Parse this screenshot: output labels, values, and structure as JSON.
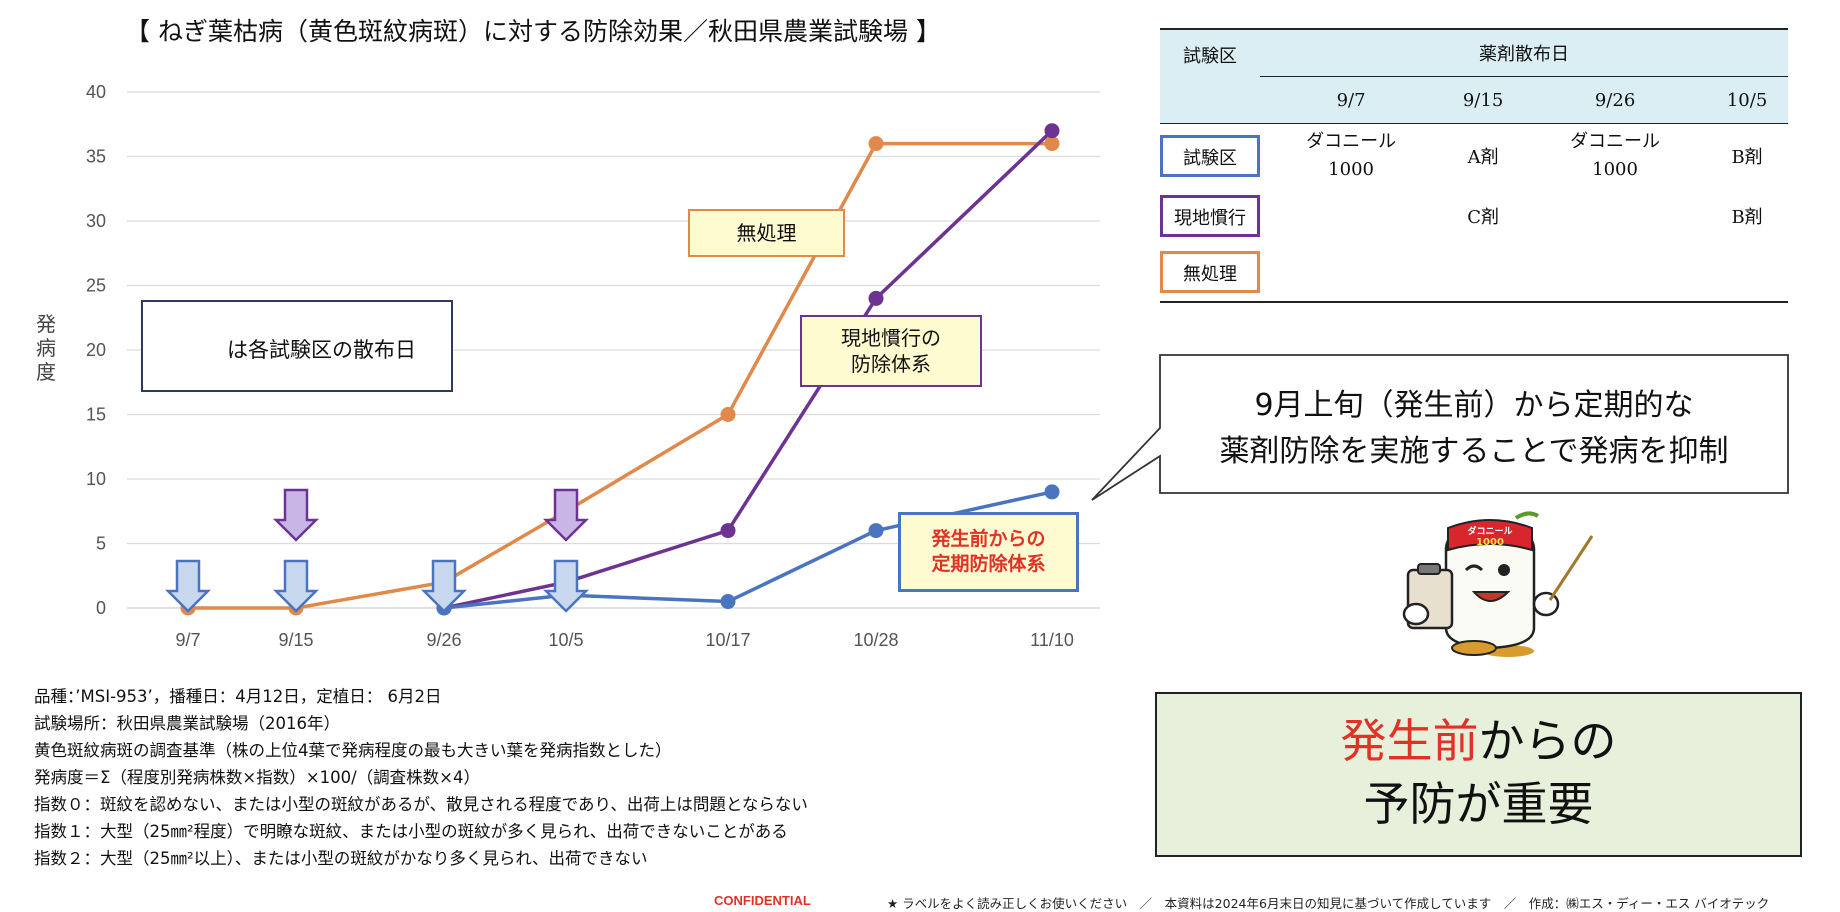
{
  "chart": {
    "title": "【 ねぎ葉枯病（黄色斑紋病斑）に対する防除効果／秋田県農業試験場 】",
    "ylabel": "発病度",
    "legend_text": "は各試験区の散布日",
    "labels": {
      "mushori": "無処理",
      "genchi_line1": "現地慣行の",
      "genchi_line2": "防除体系",
      "hasseimae_line1": "発生前からの",
      "hasseimae_line2": "定期防除体系"
    }
  },
  "chart_data": {
    "type": "line",
    "x": [
      "9/7",
      "9/15",
      "9/26",
      "10/5",
      "10/17",
      "10/28",
      "11/10"
    ],
    "ylabel": "発病度",
    "ylim": [
      0,
      40
    ],
    "yticks": [
      0,
      5,
      10,
      15,
      20,
      25,
      30,
      35,
      40
    ],
    "grid": true,
    "series": [
      {
        "name": "無処理",
        "color": "#e0894a",
        "values": [
          0,
          0,
          2,
          7.5,
          15,
          36,
          36
        ]
      },
      {
        "name": "現地慣行の防除体系",
        "color": "#6c3393",
        "values": [
          null,
          null,
          0,
          2,
          6,
          24,
          37
        ]
      },
      {
        "name": "発生前からの定期防除体系",
        "color": "#4a74bf",
        "values": [
          null,
          null,
          0,
          1,
          0.5,
          6,
          9
        ]
      }
    ],
    "spray_markers": [
      {
        "x": "9/7",
        "series": "発生前からの定期防除体系",
        "color": "#c8d8ef",
        "stroke": "#4a74bf"
      },
      {
        "x": "9/15",
        "series": "発生前からの定期防除体系",
        "color": "#c8d8ef",
        "stroke": "#4a74bf"
      },
      {
        "x": "9/15",
        "series": "現地慣行の防除体系",
        "color": "#c9b6e6",
        "stroke": "#6c3393"
      },
      {
        "x": "9/26",
        "series": "発生前からの定期防除体系",
        "color": "#c8d8ef",
        "stroke": "#4a74bf"
      },
      {
        "x": "10/5",
        "series": "発生前からの定期防除体系",
        "color": "#c8d8ef",
        "stroke": "#4a74bf"
      },
      {
        "x": "10/5",
        "series": "現地慣行の防除体系",
        "color": "#c9b6e6",
        "stroke": "#6c3393"
      }
    ]
  },
  "table": {
    "header_col": "試験区",
    "header_group": "薬剤散布日",
    "dates": [
      "9/7",
      "9/15",
      "9/26",
      "10/5"
    ],
    "rows": [
      {
        "name": "試験区",
        "border": "#4a74bf",
        "cells": [
          [
            "ダコニール",
            "1000"
          ],
          [
            "A剤"
          ],
          [
            "ダコニール",
            "1000"
          ],
          [
            "B剤"
          ]
        ]
      },
      {
        "name": "現地慣行",
        "border": "#6c3393",
        "cells": [
          [
            ""
          ],
          [
            "C剤"
          ],
          [
            ""
          ],
          [
            "B剤"
          ]
        ]
      },
      {
        "name": "無処理",
        "border": "#e0894a",
        "cells": [
          [
            ""
          ],
          [
            ""
          ],
          [
            ""
          ],
          [
            ""
          ]
        ]
      }
    ]
  },
  "bubble": {
    "line1": "9月上旬（発生前）から定期的な",
    "line2": "薬剤防除を実施することで発病を抑制"
  },
  "mascot": {
    "badge_top": "ダコニール",
    "badge_num": "1000"
  },
  "conclusion": {
    "red": "発生前",
    "line1_rest": "からの",
    "line2": "予防が重要"
  },
  "notes": [
    "品種：’MSI-953’，播種日：4月12日，定植日：  6月2日",
    "試験場所：秋田県農業試験場（2016年）",
    "黄色斑紋病斑の調査基準（株の上位4葉で発病程度の最も大きい葉を発病指数とした）",
    "発病度＝Σ（程度別発病株数×指数）×100/（調査株数×4）",
    "指数０：斑紋を認めない、または小型の斑紋があるが、散見される程度であり、出荷上は問題とならない",
    "指数１：大型（25㎜²程度）で明瞭な斑紋、または小型の斑紋が多く見られ、出荷できないことがある",
    "指数２：大型（25㎜²以上）、または小型の斑紋がかなり多く見られ、出荷できない"
  ],
  "footer": {
    "confidential": "CONFIDENTIAL",
    "note": "★ ラベルをよく読み正しくお使いください　／　本資料は2024年6月末日の知見に基づいて作成しています　／　作成：㈱エス・ディー・エス バイオテック"
  }
}
